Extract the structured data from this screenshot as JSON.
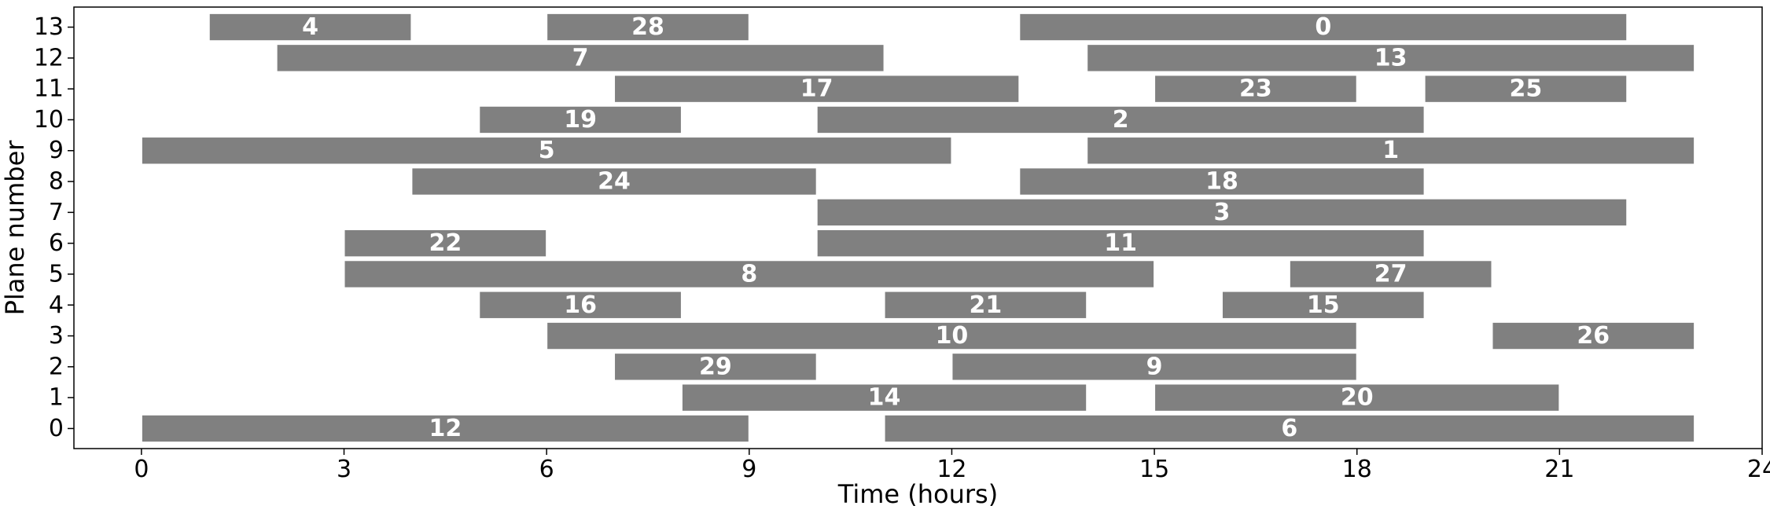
{
  "chart_data": {
    "type": "bar",
    "orientation": "horizontal-gantt",
    "xlabel": "Time (hours)",
    "ylabel": "Plane number",
    "xlim": [
      -1,
      24
    ],
    "ylim": [
      -0.65,
      13.65
    ],
    "xticks": [
      0,
      3,
      6,
      9,
      12,
      15,
      18,
      21,
      24
    ],
    "yticks": [
      0,
      1,
      2,
      3,
      4,
      5,
      6,
      7,
      8,
      9,
      10,
      11,
      12,
      13
    ],
    "grid": false,
    "bar_color": "#808080",
    "label_color": "#ffffff",
    "tasks": [
      {
        "plane": 13,
        "start": 1,
        "end": 4,
        "label": "4"
      },
      {
        "plane": 13,
        "start": 6,
        "end": 9,
        "label": "28"
      },
      {
        "plane": 13,
        "start": 13,
        "end": 22,
        "label": "0"
      },
      {
        "plane": 12,
        "start": 2,
        "end": 11,
        "label": "7"
      },
      {
        "plane": 12,
        "start": 14,
        "end": 23,
        "label": "13"
      },
      {
        "plane": 11,
        "start": 7,
        "end": 13,
        "label": "17"
      },
      {
        "plane": 11,
        "start": 15,
        "end": 18,
        "label": "23"
      },
      {
        "plane": 11,
        "start": 19,
        "end": 22,
        "label": "25"
      },
      {
        "plane": 10,
        "start": 5,
        "end": 8,
        "label": "19"
      },
      {
        "plane": 10,
        "start": 10,
        "end": 19,
        "label": "2"
      },
      {
        "plane": 9,
        "start": 0,
        "end": 12,
        "label": "5"
      },
      {
        "plane": 9,
        "start": 14,
        "end": 23,
        "label": "1"
      },
      {
        "plane": 8,
        "start": 4,
        "end": 10,
        "label": "24"
      },
      {
        "plane": 8,
        "start": 13,
        "end": 19,
        "label": "18"
      },
      {
        "plane": 7,
        "start": 10,
        "end": 22,
        "label": "3"
      },
      {
        "plane": 6,
        "start": 3,
        "end": 6,
        "label": "22"
      },
      {
        "plane": 6,
        "start": 10,
        "end": 19,
        "label": "11"
      },
      {
        "plane": 5,
        "start": 3,
        "end": 15,
        "label": "8"
      },
      {
        "plane": 5,
        "start": 17,
        "end": 20,
        "label": "27"
      },
      {
        "plane": 4,
        "start": 5,
        "end": 8,
        "label": "16"
      },
      {
        "plane": 4,
        "start": 11,
        "end": 14,
        "label": "21"
      },
      {
        "plane": 4,
        "start": 16,
        "end": 19,
        "label": "15"
      },
      {
        "plane": 3,
        "start": 6,
        "end": 18,
        "label": "10"
      },
      {
        "plane": 3,
        "start": 20,
        "end": 23,
        "label": "26"
      },
      {
        "plane": 2,
        "start": 7,
        "end": 10,
        "label": "29"
      },
      {
        "plane": 2,
        "start": 12,
        "end": 18,
        "label": "9"
      },
      {
        "plane": 1,
        "start": 8,
        "end": 14,
        "label": "14"
      },
      {
        "plane": 1,
        "start": 15,
        "end": 21,
        "label": "20"
      },
      {
        "plane": 0,
        "start": 0,
        "end": 9,
        "label": "12"
      },
      {
        "plane": 0,
        "start": 11,
        "end": 23,
        "label": "6"
      }
    ]
  }
}
